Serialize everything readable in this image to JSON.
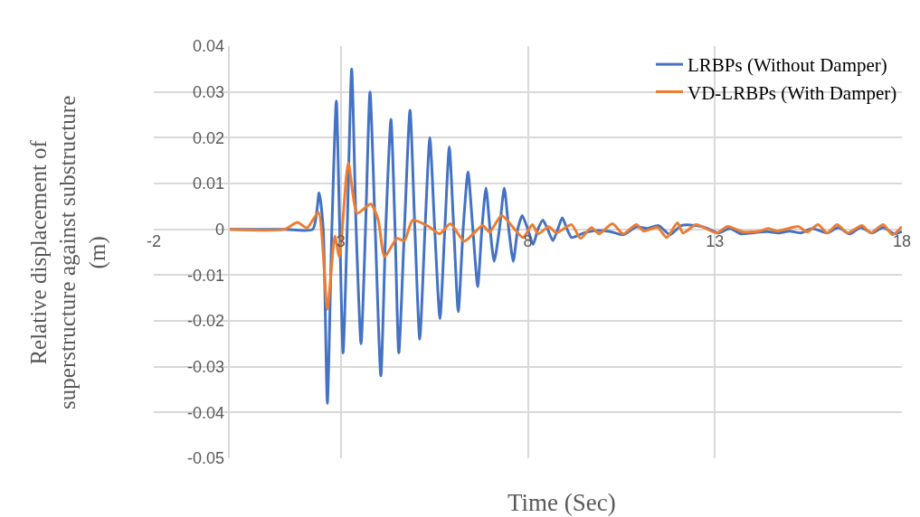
{
  "chart_data": {
    "type": "line",
    "xlabel": "Time (Sec)",
    "ylabel": "Relative displacement of\nsuperstructure against substructure\n(m)",
    "xlim": [
      -2,
      18
    ],
    "xticks": [
      -2,
      3,
      8,
      13,
      18
    ],
    "ylim": [
      -0.05,
      0.04
    ],
    "yticks": [
      -0.05,
      -0.04,
      -0.03,
      -0.02,
      -0.01,
      0,
      0.01,
      0.02,
      0.03,
      0.04
    ],
    "grid": true,
    "legend": "top right",
    "marker": "none",
    "line_style": "solid",
    "series": [
      {
        "name": "LRBPs (Without Damper)",
        "color": "#4472c4",
        "x": [
          0,
          1.5,
          2.25,
          2.42,
          2.53,
          2.64,
          2.76,
          2.88,
          2.97,
          3.06,
          3.17,
          3.29,
          3.41,
          3.54,
          3.66,
          3.78,
          3.92,
          4.07,
          4.2,
          4.34,
          4.45,
          4.55,
          4.7,
          4.85,
          4.98,
          5.11,
          5.25,
          5.38,
          5.51,
          5.65,
          5.78,
          5.9,
          6.02,
          6.14,
          6.27,
          6.4,
          6.53,
          6.66,
          6.77,
          6.88,
          6.99,
          7.1,
          7.24,
          7.37,
          7.49,
          7.61,
          7.73,
          7.85,
          8.0,
          8.14,
          8.27,
          8.4,
          8.53,
          8.67,
          8.8,
          8.92,
          9.05,
          9.17,
          9.5,
          9.8,
          10.2,
          10.55,
          10.9,
          11.2,
          11.5,
          11.8,
          12.1,
          12.5,
          12.8,
          13.1,
          13.4,
          13.7,
          14.0,
          14.4,
          14.7,
          15.0,
          15.3,
          15.6,
          16.0,
          16.3,
          16.6,
          16.9,
          17.2,
          17.5,
          17.8,
          18.0
        ],
        "values": [
          0,
          0,
          0,
          0.008,
          0,
          -0.038,
          0,
          0.028,
          0,
          -0.027,
          0,
          0.035,
          0,
          -0.025,
          0,
          0.03,
          0,
          -0.032,
          0,
          0.024,
          0,
          -0.027,
          0,
          0.026,
          0,
          -0.024,
          0,
          0.02,
          0,
          -0.0195,
          0,
          0.018,
          0,
          -0.018,
          0,
          0.0125,
          0,
          -0.0125,
          0,
          0.009,
          0,
          -0.007,
          0,
          0.009,
          0,
          -0.007,
          0,
          0.003,
          0,
          -0.0033,
          0,
          0.002,
          0,
          -0.0025,
          0,
          0.0025,
          0,
          -0.0018,
          -0.0008,
          -0.0003,
          -0.0005,
          -0.0012,
          0.0005,
          0.0002,
          0.0008,
          -0.0012,
          0.0008,
          0.0008,
          0.0002,
          -0.0008,
          0.0002,
          -0.001,
          -0.0008,
          -0.0005,
          -0.0008,
          -0.0004,
          -0.0008,
          0.0002,
          -0.0008,
          0.0004,
          -0.001,
          0.0004,
          -0.0008,
          0.0004,
          -0.001,
          -0.0005
        ]
      },
      {
        "name": "VD-LRBPs (With Damper)",
        "color": "#ed7d31",
        "x": [
          0,
          1.5,
          1.84,
          2.1,
          2.4,
          2.64,
          2.84,
          2.96,
          3.2,
          3.44,
          3.8,
          4.0,
          4.17,
          4.5,
          4.7,
          4.92,
          5.35,
          5.64,
          5.93,
          6.3,
          6.79,
          6.98,
          7.3,
          7.87,
          8.12,
          8.28,
          8.56,
          8.76,
          9.17,
          9.41,
          9.7,
          9.9,
          10.26,
          10.55,
          10.9,
          11.1,
          11.47,
          11.71,
          12.0,
          12.15,
          12.5,
          13.05,
          13.33,
          13.77,
          14.2,
          14.43,
          14.67,
          15.23,
          15.47,
          15.76,
          16.0,
          16.27,
          16.55,
          16.93,
          17.17,
          17.5,
          17.75,
          18.0
        ],
        "values": [
          0,
          0,
          0.0015,
          0.0003,
          0.0037,
          -0.0175,
          -0.0015,
          -0.006,
          0.0145,
          0.0035,
          0.0055,
          0.002,
          -0.006,
          -0.002,
          -0.0025,
          0.002,
          0.0006,
          -0.001,
          0.0012,
          -0.0026,
          0.0008,
          -0.0006,
          0.003,
          -0.0018,
          0.001,
          -0.001,
          0.0006,
          -0.0008,
          0.001,
          -0.002,
          0.0004,
          -0.001,
          0.0012,
          -0.001,
          0.001,
          -0.0004,
          0.0004,
          -0.0018,
          0.0014,
          -0.0008,
          0.001,
          -0.0008,
          0.0006,
          -0.0006,
          -0.0004,
          0.0002,
          -0.0004,
          0.0006,
          -0.0006,
          0.001,
          -0.0008,
          0.001,
          -0.0008,
          0.0008,
          -0.0008,
          0.001,
          -0.0012,
          0.0006
        ]
      }
    ]
  }
}
